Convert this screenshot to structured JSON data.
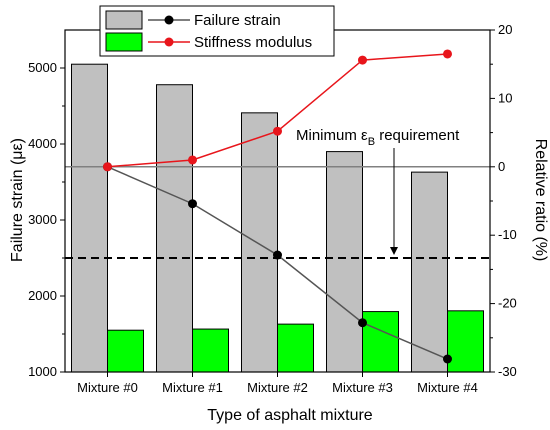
{
  "chart_data": {
    "type": "bar",
    "categories": [
      "Mixture #0",
      "Mixture #1",
      "Mixture #2",
      "Mixture #3",
      "Mixture #4"
    ],
    "xlabel": "Type of asphalt mixture",
    "ylabel": "Failure strain (με)",
    "y2label": "Relative ratio (%)",
    "ylim": [
      1000,
      5500
    ],
    "y2lim": [
      -30,
      20
    ],
    "yticks": [
      "1000",
      "2000",
      "3000",
      "4000",
      "5000"
    ],
    "y2ticks": [
      "-30",
      "-20",
      "-10",
      "0",
      "10",
      "20"
    ],
    "bars": [
      {
        "name": "Failure strain",
        "color": "#c0c0c0",
        "values": [
          5050,
          4780,
          4410,
          3900,
          3630
        ]
      },
      {
        "name": "Stiffness modulus",
        "color": "#00ff00",
        "values": [
          1550,
          1565,
          1630,
          1795,
          1805
        ]
      }
    ],
    "lines": [
      {
        "name": "Failure strain",
        "color": "#000000",
        "line_color": "#555555",
        "axis": "right",
        "values": [
          0,
          -5.4,
          -12.9,
          -22.8,
          -28.1
        ]
      },
      {
        "name": "Stiffness modulus",
        "color": "#e8151b",
        "line_color": "#e8151b",
        "axis": "right",
        "values": [
          0,
          1.0,
          5.2,
          15.6,
          16.5
        ]
      }
    ],
    "reference_lines": [
      {
        "axis": "left",
        "value": 3700,
        "style": "solid",
        "color": "#808080"
      },
      {
        "axis": "left",
        "value": 2500,
        "style": "dashed",
        "color": "#000000"
      }
    ],
    "annotation": {
      "prefix": "Minimum ε",
      "subscript": "B",
      "suffix": " requirement",
      "arrow_to_value": 2500
    },
    "legend_position": "top"
  }
}
